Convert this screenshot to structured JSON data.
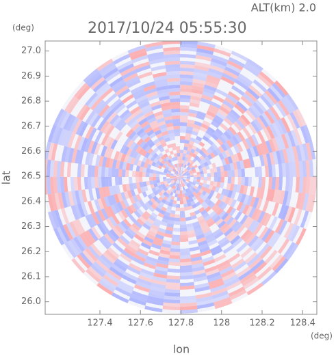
{
  "chart_data": {
    "type": "radar-image",
    "title": "2017/10/24 05:55:30",
    "subtitle": "ALT(km) 2.0",
    "x_label": "lon",
    "y_label": "lat",
    "x_unit": "(deg)",
    "y_unit": "(deg)",
    "xlim": [
      127.13,
      128.47
    ],
    "ylim": [
      25.95,
      27.04
    ],
    "xticks": [
      127.4,
      127.6,
      127.8,
      128.0,
      128.2,
      128.4
    ],
    "yticks": [
      26.0,
      26.1,
      26.2,
      26.3,
      26.4,
      26.5,
      26.6,
      26.7,
      26.8,
      26.9,
      27.0
    ]
  }
}
